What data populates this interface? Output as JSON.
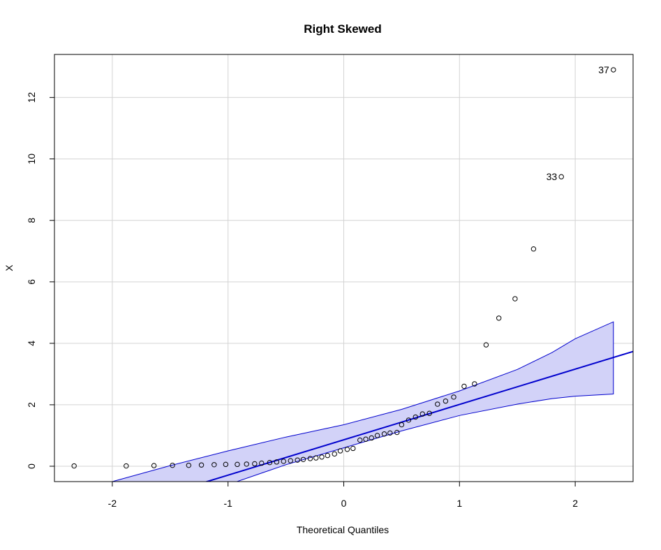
{
  "chart_data": {
    "type": "scatter",
    "title": "Right Skewed",
    "xlabel": "Theoretical Quantiles",
    "ylabel": "X",
    "xlim": [
      -2.5,
      2.5
    ],
    "ylim": [
      -0.5,
      13.4
    ],
    "xticks": [
      -2,
      -1,
      0,
      1,
      2
    ],
    "xtick_labels": [
      "-2",
      "-1",
      "0",
      "1",
      "2"
    ],
    "yticks": [
      0,
      2,
      4,
      6,
      8,
      10,
      12
    ],
    "ytick_labels": [
      "0",
      "2",
      "4",
      "6",
      "8",
      "10",
      "12"
    ],
    "grid": true,
    "points": [
      {
        "x": -2.33,
        "y": 0.01
      },
      {
        "x": -1.88,
        "y": 0.01
      },
      {
        "x": -1.64,
        "y": 0.02
      },
      {
        "x": -1.48,
        "y": 0.03
      },
      {
        "x": -1.34,
        "y": 0.03
      },
      {
        "x": -1.23,
        "y": 0.04
      },
      {
        "x": -1.12,
        "y": 0.05
      },
      {
        "x": -1.02,
        "y": 0.06
      },
      {
        "x": -0.92,
        "y": 0.06
      },
      {
        "x": -0.84,
        "y": 0.07
      },
      {
        "x": -0.77,
        "y": 0.08
      },
      {
        "x": -0.71,
        "y": 0.1
      },
      {
        "x": -0.64,
        "y": 0.12
      },
      {
        "x": -0.58,
        "y": 0.14
      },
      {
        "x": -0.52,
        "y": 0.16
      },
      {
        "x": -0.46,
        "y": 0.18
      },
      {
        "x": -0.4,
        "y": 0.2
      },
      {
        "x": -0.35,
        "y": 0.22
      },
      {
        "x": -0.29,
        "y": 0.25
      },
      {
        "x": -0.24,
        "y": 0.27
      },
      {
        "x": -0.19,
        "y": 0.3
      },
      {
        "x": -0.14,
        "y": 0.35
      },
      {
        "x": -0.08,
        "y": 0.4
      },
      {
        "x": -0.03,
        "y": 0.5
      },
      {
        "x": 0.03,
        "y": 0.55
      },
      {
        "x": 0.08,
        "y": 0.58
      },
      {
        "x": 0.14,
        "y": 0.85
      },
      {
        "x": 0.19,
        "y": 0.88
      },
      {
        "x": 0.24,
        "y": 0.92
      },
      {
        "x": 0.29,
        "y": 1.0
      },
      {
        "x": 0.35,
        "y": 1.05
      },
      {
        "x": 0.4,
        "y": 1.08
      },
      {
        "x": 0.46,
        "y": 1.1
      },
      {
        "x": 0.5,
        "y": 1.35
      },
      {
        "x": 0.56,
        "y": 1.5
      },
      {
        "x": 0.62,
        "y": 1.6
      },
      {
        "x": 0.68,
        "y": 1.7
      },
      {
        "x": 0.74,
        "y": 1.72
      },
      {
        "x": 0.81,
        "y": 2.02
      },
      {
        "x": 0.88,
        "y": 2.12
      },
      {
        "x": 0.95,
        "y": 2.25
      },
      {
        "x": 1.04,
        "y": 2.6
      },
      {
        "x": 1.13,
        "y": 2.68
      },
      {
        "x": 1.23,
        "y": 3.95
      },
      {
        "x": 1.34,
        "y": 4.82
      },
      {
        "x": 1.48,
        "y": 5.45
      },
      {
        "x": 1.64,
        "y": 7.07
      },
      {
        "x": 1.88,
        "y": 9.42
      },
      {
        "x": 2.33,
        "y": 12.9
      }
    ],
    "point_labels": [
      {
        "x": 1.88,
        "y": 9.42,
        "text": "33"
      },
      {
        "x": 2.33,
        "y": 12.9,
        "text": "37"
      }
    ],
    "reference_line": {
      "intercept": 0.86,
      "slope": 1.15,
      "color": "#0000cd"
    },
    "envelope": {
      "fill": "#d2d2f8",
      "stroke": "#0000cd",
      "x": [
        -2.33,
        -2.0,
        -1.5,
        -1.0,
        -0.5,
        0.0,
        0.5,
        1.0,
        1.5,
        1.8,
        2.0,
        2.33
      ],
      "upper": [
        -0.95,
        -0.5,
        0.02,
        0.5,
        0.95,
        1.35,
        1.85,
        2.45,
        3.15,
        3.7,
        4.15,
        4.7
      ],
      "lower": [
        -2.5,
        -2.0,
        -1.25,
        -0.6,
        0.05,
        0.6,
        1.15,
        1.65,
        2.02,
        2.2,
        2.28,
        2.35
      ]
    }
  }
}
